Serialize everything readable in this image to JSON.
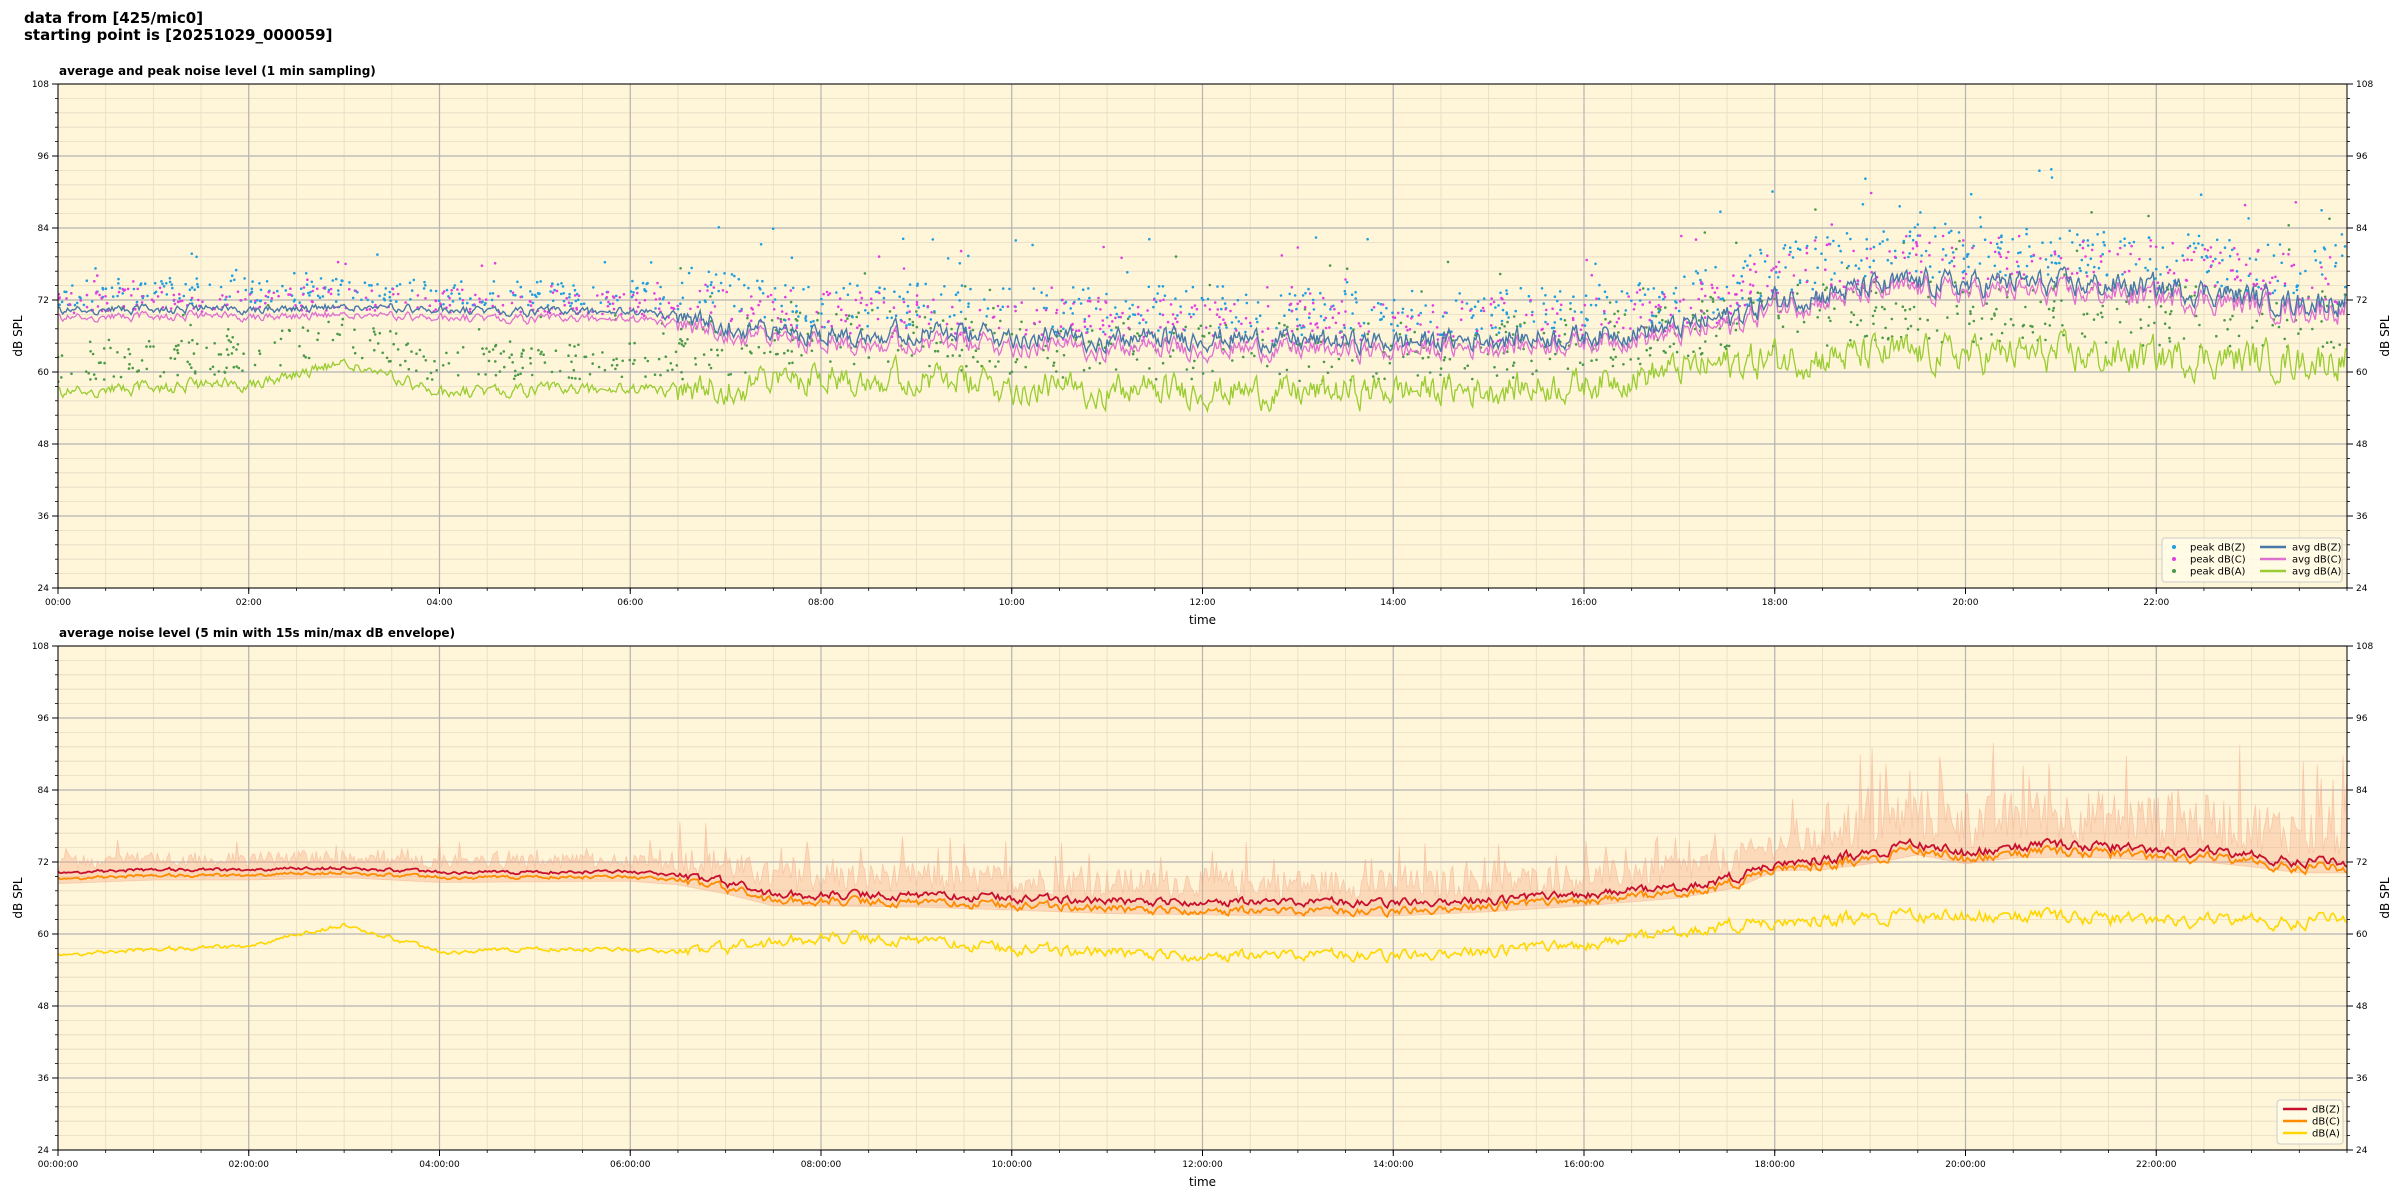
{
  "header": {
    "line1": "data from [425/mic0]",
    "line2": "starting point is [20251029_000059]"
  },
  "colors": {
    "plot_bg": "#fff5d8",
    "grid_major": "#b4b4b4",
    "grid_minor": "#e6dcc4",
    "peakZ": "#1f9fe0",
    "peakC": "#e040e0",
    "peakA": "#4a9a4a",
    "avgZ": "#4878a8",
    "avgC": "#e070d0",
    "avgA": "#9acd32",
    "dBZ": "#c8102e",
    "dBC": "#ff8c00",
    "dBA": "#ffd700",
    "envelope": "#f4a582"
  },
  "chart_data": [
    {
      "type": "line",
      "title": "average and peak noise level (1 min sampling)",
      "xlabel": "time",
      "ylabel": "dB SPL",
      "xlim": [
        0,
        24
      ],
      "ylim": [
        24,
        108
      ],
      "yticks": [
        24,
        36,
        48,
        60,
        72,
        84,
        96,
        108
      ],
      "xticks": [
        "00:00",
        "02:00",
        "04:00",
        "06:00",
        "08:00",
        "10:00",
        "12:00",
        "14:00",
        "16:00",
        "18:00",
        "20:00",
        "22:00"
      ],
      "grid": true,
      "legend_position": "bottom-right",
      "series": [
        {
          "name": "peak dB(Z)",
          "style": "dots",
          "color_key": "peakZ"
        },
        {
          "name": "peak dB(C)",
          "style": "dots",
          "color_key": "peakC"
        },
        {
          "name": "peak dB(A)",
          "style": "dots",
          "color_key": "peakA"
        },
        {
          "name": "avg dB(Z)",
          "style": "line",
          "color_key": "avgZ"
        },
        {
          "name": "avg dB(C)",
          "style": "line",
          "color_key": "avgC"
        },
        {
          "name": "avg dB(A)",
          "style": "line",
          "color_key": "avgA"
        }
      ],
      "anchors": {
        "hours": [
          0,
          1,
          2,
          3,
          4,
          5,
          6,
          6.5,
          7,
          7.5,
          8,
          9,
          10,
          11,
          12,
          13,
          14,
          15,
          16,
          17,
          17.6,
          18,
          18.5,
          19,
          19.5,
          20,
          20.5,
          21,
          21.5,
          22,
          22.5,
          23,
          23.5,
          24
        ],
        "avgZ": [
          70.2,
          70.5,
          70.5,
          70.8,
          70.3,
          70,
          70,
          69.3,
          68,
          66.5,
          66.5,
          66.5,
          66,
          65.5,
          65.8,
          65.2,
          65,
          65.5,
          66,
          67.5,
          69.5,
          72,
          73,
          74,
          75,
          74.5,
          75,
          74.5,
          74.5,
          74,
          73.5,
          72.5,
          71.5,
          71.8
        ],
        "avgC": [
          69,
          69.3,
          69.3,
          69.5,
          69,
          68.8,
          68.8,
          68,
          66.8,
          65.5,
          65.2,
          65,
          64.5,
          64,
          64,
          63.7,
          63.5,
          64.2,
          65,
          66.2,
          68,
          71,
          72,
          73,
          73.8,
          73.2,
          73.5,
          73,
          73.2,
          72.5,
          72,
          71.2,
          70.3,
          70.5
        ],
        "avgA": [
          56.5,
          57.5,
          58,
          61.5,
          56.5,
          57,
          57,
          57,
          57.5,
          58.5,
          59.5,
          59,
          57.5,
          57,
          57,
          56.5,
          57,
          57,
          58,
          60.5,
          61.5,
          62.3,
          62.5,
          62.8,
          63,
          63,
          63,
          62.8,
          62.5,
          62.5,
          62.3,
          62.3,
          61.8,
          62.3
        ],
        "peakZ_offset": 1.8,
        "peakC_offset": 1.5,
        "peakA_offset": 3.5
      }
    },
    {
      "type": "line",
      "title": "average noise level (5 min with 15s min/max dB envelope)",
      "xlabel": "time",
      "ylabel": "dB SPL",
      "xlim": [
        0,
        24
      ],
      "ylim": [
        24,
        108
      ],
      "yticks": [
        24,
        36,
        48,
        60,
        72,
        84,
        96,
        108
      ],
      "xticks": [
        "00:00:00",
        "02:00:00",
        "04:00:00",
        "06:00:00",
        "08:00:00",
        "10:00:00",
        "12:00:00",
        "14:00:00",
        "16:00:00",
        "18:00:00",
        "20:00:00",
        "22:00:00"
      ],
      "grid": true,
      "legend_position": "bottom-right",
      "series": [
        {
          "name": "dB(Z)",
          "style": "line",
          "color_key": "dBZ"
        },
        {
          "name": "dB(C)",
          "style": "line",
          "color_key": "dBC"
        },
        {
          "name": "dB(A)",
          "style": "line",
          "color_key": "dBA"
        }
      ],
      "anchors": {
        "hours": [
          0,
          1,
          2,
          3,
          4,
          5,
          6,
          6.5,
          7,
          7.5,
          8,
          9,
          10,
          11,
          12,
          13,
          14,
          15,
          16,
          17,
          17.6,
          18,
          18.5,
          19,
          19.5,
          20,
          20.5,
          21,
          21.5,
          22,
          22.5,
          23,
          23.5,
          24
        ],
        "dBZ": [
          70.2,
          70.8,
          70.7,
          71,
          70.3,
          70.3,
          70.5,
          69.8,
          68.5,
          66.5,
          66.5,
          66.5,
          66,
          65.5,
          65.5,
          65.3,
          65.3,
          65.5,
          66.5,
          67.8,
          69.5,
          72,
          72.5,
          73.5,
          75,
          73.5,
          74.5,
          74.8,
          74.5,
          74,
          73.8,
          73,
          72,
          72
        ],
        "dBC": [
          69.2,
          69.8,
          69.8,
          70.2,
          69.4,
          69.5,
          69.6,
          69,
          67.5,
          65.5,
          65.5,
          65.3,
          64.8,
          64.2,
          64,
          63.8,
          63.8,
          64.5,
          65.5,
          66.8,
          68.5,
          71.3,
          71.5,
          72.5,
          74,
          72.5,
          73.5,
          73.6,
          73.5,
          73,
          72.8,
          72,
          71,
          71
        ],
        "dBA": [
          56.5,
          57.5,
          58,
          61.5,
          57,
          57.5,
          57.5,
          57,
          57.5,
          58.5,
          59.5,
          59,
          57.5,
          57,
          56.5,
          56.5,
          56.5,
          57,
          58,
          60.5,
          61.5,
          62.3,
          62.5,
          62.8,
          63,
          63,
          63,
          62.8,
          62.5,
          62.5,
          62.3,
          62.3,
          61.8,
          63
        ]
      }
    }
  ]
}
